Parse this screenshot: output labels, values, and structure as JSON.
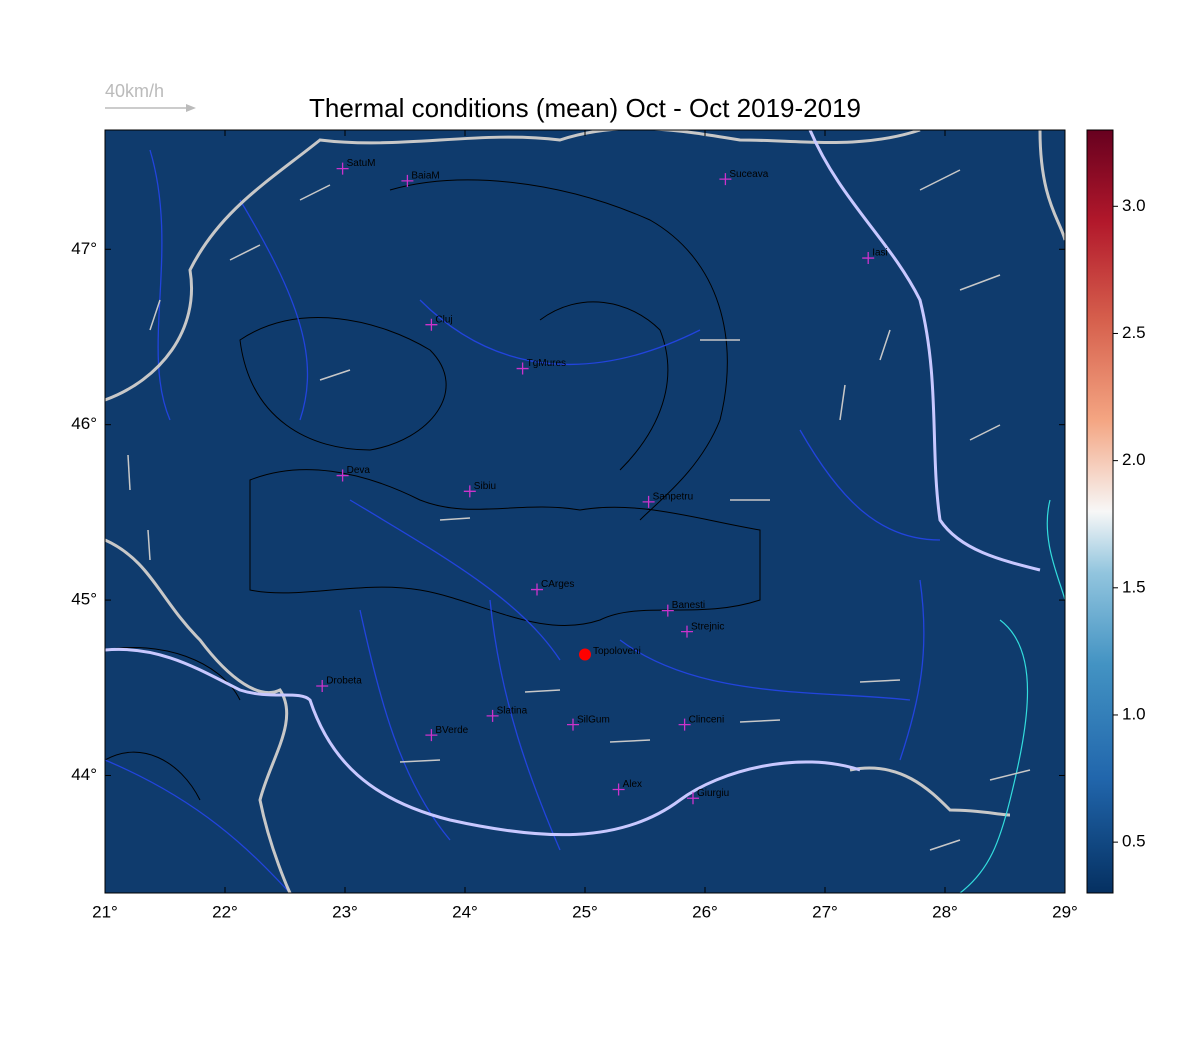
{
  "chart_data": {
    "type": "scatter",
    "title": "Thermal conditions (mean) Oct - Oct  2019-2019",
    "wind_legend": "40km/h",
    "xlim": [
      21,
      29
    ],
    "ylim": [
      43.33,
      47.68
    ],
    "xticks": [
      {
        "value": 21,
        "label": "21°"
      },
      {
        "value": 22,
        "label": "22°"
      },
      {
        "value": 23,
        "label": "23°"
      },
      {
        "value": 24,
        "label": "24°"
      },
      {
        "value": 25,
        "label": "25°"
      },
      {
        "value": 26,
        "label": "26°"
      },
      {
        "value": 27,
        "label": "27°"
      },
      {
        "value": 28,
        "label": "28°"
      },
      {
        "value": 29,
        "label": "29°"
      }
    ],
    "yticks": [
      {
        "value": 44,
        "label": "44°"
      },
      {
        "value": 45,
        "label": "45°"
      },
      {
        "value": 46,
        "label": "46°"
      },
      {
        "value": 47,
        "label": "47°"
      }
    ],
    "city_color": "#cc33cc",
    "labels": [
      "SatuM",
      "BaiaM",
      "Suceava",
      "Iasi",
      "Cluj",
      "TgMures",
      "Deva",
      "Sibiu",
      "Sanpetru",
      "CArges",
      "Banesti",
      "Strejnic",
      "Drobeta",
      "Slatina",
      "BVerde",
      "SilGum",
      "Clinceni",
      "Alex",
      "Giurgiu"
    ],
    "x": [
      22.98,
      23.52,
      26.17,
      27.36,
      23.72,
      24.48,
      22.98,
      24.04,
      25.53,
      24.6,
      25.69,
      25.85,
      22.81,
      24.23,
      23.72,
      24.9,
      25.83,
      25.28,
      25.9
    ],
    "y": [
      47.46,
      47.39,
      47.4,
      46.95,
      46.57,
      46.32,
      45.71,
      45.62,
      45.56,
      45.06,
      44.94,
      44.82,
      44.51,
      44.34,
      44.23,
      44.29,
      44.29,
      43.92,
      43.87
    ],
    "highlight": {
      "label": "Topoloveni",
      "x": 25.0,
      "y": 44.69,
      "color": "#ff0000"
    },
    "colorbar": {
      "lim": [
        0.3,
        3.3
      ],
      "ticks": [
        0.5,
        {
          "value": 1.0,
          "label": "1.0"
        },
        1.5,
        {
          "value": 2.0,
          "label": "2.0"
        },
        2.5,
        {
          "value": 3.0,
          "label": "3.0"
        }
      ]
    }
  }
}
